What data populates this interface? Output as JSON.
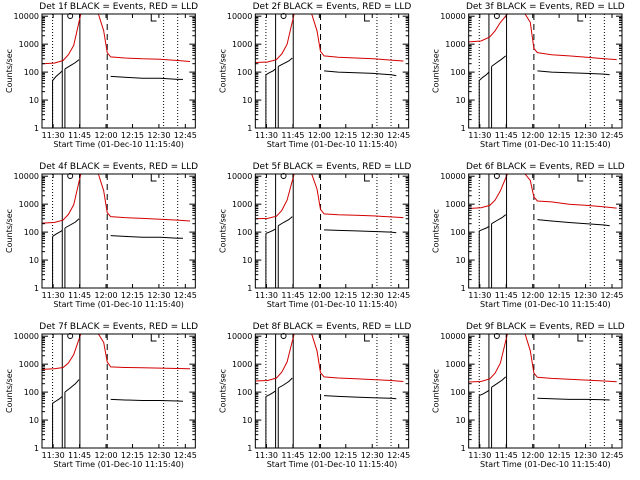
{
  "chart_data": {
    "type": "line",
    "grid": false,
    "layout": "3x3",
    "colors": {
      "events": "#000000",
      "lld": "#d40000",
      "axes": "#000000"
    },
    "x_ticks": [
      "11:30",
      "11:45",
      "12:00",
      "12:15",
      "12:30",
      "12:45"
    ],
    "y_ticks": [
      "1",
      "10",
      "100",
      "1000",
      "10000"
    ],
    "y_scale": "log",
    "ylim": [
      1,
      12000
    ],
    "xlim_minutes_after_start": [
      8,
      95
    ],
    "xlabel": "Start Time (01-Dec-10 11:15:40)",
    "ylabel": "Counts/sec",
    "vertical_markers": {
      "solid_minutes": [
        19.5,
        29.5
      ],
      "dashed_minutes": [
        45
      ],
      "dotted_minutes": [
        14,
        77,
        85
      ]
    },
    "panels": [
      {
        "title": "Det 1f BLACK = Events, RED = LLD",
        "series": [
          {
            "name": "BLACK",
            "segments": [
              {
                "x": [
                  14,
                  16,
                  18,
                  19.5
                ],
                "y": [
                  50,
                  70,
                  90,
                  110
                ]
              },
              {
                "x": [
                  21,
                  24,
                  27,
                  29
                ],
                "y": [
                  130,
                  170,
                  220,
                  280
                ]
              },
              {
                "x": [
                  47,
                  55,
                  65,
                  75,
                  85,
                  88
                ],
                "y": [
                  70,
                  65,
                  60,
                  60,
                  55,
                  55
                ]
              }
            ]
          },
          {
            "name": "RED",
            "x": [
              8,
              15,
              20,
              23,
              26,
              30,
              36,
              40,
              43,
              45,
              47,
              55,
              65,
              75,
              85,
              92
            ],
            "y": [
              200,
              210,
              260,
              420,
              900,
              12000,
              12000,
              12000,
              3000,
              500,
              350,
              320,
              300,
              290,
              260,
              240
            ]
          }
        ]
      },
      {
        "title": "Det 2f BLACK = Events, RED = LLD",
        "series": [
          {
            "name": "BLACK",
            "segments": [
              {
                "x": [
                  14,
                  16,
                  18,
                  19.5
                ],
                "y": [
                  80,
                  95,
                  110,
                  130
                ]
              },
              {
                "x": [
                  21,
                  24,
                  27,
                  29
                ],
                "y": [
                  160,
                  200,
                  250,
                  320
                ]
              },
              {
                "x": [
                  47,
                  55,
                  65,
                  75,
                  85,
                  88
                ],
                "y": [
                  110,
                  100,
                  95,
                  90,
                  80,
                  75
                ]
              }
            ]
          },
          {
            "name": "RED",
            "x": [
              8,
              15,
              20,
              23,
              26,
              30,
              36,
              40,
              43,
              45,
              47,
              55,
              65,
              75,
              85,
              92
            ],
            "y": [
              220,
              230,
              280,
              450,
              1000,
              12000,
              12000,
              12000,
              3000,
              550,
              380,
              340,
              320,
              300,
              270,
              250
            ]
          }
        ]
      },
      {
        "title": "Det 3f BLACK = Events, RED = LLD",
        "series": [
          {
            "name": "BLACK",
            "segments": [
              {
                "x": [
                  14,
                  16,
                  18,
                  19.5
                ],
                "y": [
                  50,
                  65,
                  80,
                  100
                ]
              },
              {
                "x": [
                  21,
                  24,
                  27,
                  29
                ],
                "y": [
                  160,
                  220,
                  300,
                  380
                ]
              },
              {
                "x": [
                  47,
                  55,
                  65,
                  75,
                  85,
                  88
                ],
                "y": [
                  110,
                  100,
                  95,
                  90,
                  85,
                  80
                ]
              }
            ]
          },
          {
            "name": "RED",
            "x": [
              8,
              15,
              20,
              23,
              26,
              30,
              36,
              40,
              43,
              45,
              47,
              55,
              65,
              75,
              85,
              92
            ],
            "y": [
              1200,
              1300,
              1800,
              3000,
              6000,
              12000,
              12000,
              12000,
              6000,
              700,
              500,
              420,
              380,
              340,
              300,
              280
            ]
          }
        ]
      },
      {
        "title": "Det 4f BLACK = Events, RED = LLD",
        "series": [
          {
            "name": "BLACK",
            "segments": [
              {
                "x": [
                  14,
                  16,
                  18,
                  19.5
                ],
                "y": [
                  70,
                  85,
                  100,
                  115
                ]
              },
              {
                "x": [
                  21,
                  24,
                  27,
                  29
                ],
                "y": [
                  140,
                  180,
                  230,
                  300
                ]
              },
              {
                "x": [
                  47,
                  55,
                  65,
                  75,
                  85,
                  88
                ],
                "y": [
                  75,
                  70,
                  65,
                  65,
                  60,
                  60
                ]
              }
            ]
          },
          {
            "name": "RED",
            "x": [
              8,
              15,
              20,
              23,
              26,
              30,
              36,
              40,
              43,
              45,
              47,
              55,
              65,
              75,
              85,
              92
            ],
            "y": [
              210,
              220,
              270,
              430,
              950,
              12000,
              12000,
              12000,
              3000,
              500,
              360,
              330,
              310,
              290,
              270,
              250
            ]
          }
        ]
      },
      {
        "title": "Det 5f BLACK = Events, RED = LLD",
        "series": [
          {
            "name": "BLACK",
            "segments": [
              {
                "x": [
                  14,
                  16,
                  18,
                  19.5
                ],
                "y": [
                  90,
                  100,
                  115,
                  130
                ]
              },
              {
                "x": [
                  21,
                  24,
                  27,
                  29
                ],
                "y": [
                  170,
                  220,
                  280,
                  360
                ]
              },
              {
                "x": [
                  47,
                  55,
                  65,
                  75,
                  85,
                  88
                ],
                "y": [
                  120,
                  115,
                  110,
                  105,
                  100,
                  95
                ]
              }
            ]
          },
          {
            "name": "RED",
            "x": [
              8,
              15,
              20,
              23,
              26,
              30,
              36,
              40,
              43,
              45,
              47,
              55,
              65,
              75,
              85,
              92
            ],
            "y": [
              300,
              310,
              370,
              600,
              1400,
              12000,
              12000,
              12000,
              3500,
              650,
              450,
              420,
              400,
              380,
              350,
              330
            ]
          }
        ]
      },
      {
        "title": "Det 6f BLACK = Events, RED = LLD",
        "series": [
          {
            "name": "BLACK",
            "segments": [
              {
                "x": [
                  14,
                  16,
                  18,
                  19.5
                ],
                "y": [
                  110,
                  125,
                  140,
                  160
                ]
              },
              {
                "x": [
                  21,
                  24,
                  27,
                  29
                ],
                "y": [
                  200,
                  260,
                  330,
                  420
                ]
              },
              {
                "x": [
                  47,
                  55,
                  65,
                  75,
                  85,
                  88
                ],
                "y": [
                  280,
                  250,
                  220,
                  200,
                  180,
                  170
                ]
              }
            ]
          },
          {
            "name": "RED",
            "x": [
              8,
              15,
              20,
              23,
              26,
              30,
              36,
              40,
              43,
              45,
              47,
              55,
              65,
              75,
              85,
              92
            ],
            "y": [
              700,
              750,
              900,
              1400,
              3000,
              12000,
              12000,
              12000,
              7000,
              1800,
              1300,
              1200,
              1000,
              900,
              800,
              720
            ]
          }
        ]
      },
      {
        "title": "Det 7f BLACK = Events, RED = LLD",
        "series": [
          {
            "name": "BLACK",
            "segments": [
              {
                "x": [
                  14,
                  16,
                  18,
                  19.5
                ],
                "y": [
                  40,
                  48,
                  58,
                  70
                ]
              },
              {
                "x": [
                  21,
                  24,
                  27,
                  29
                ],
                "y": [
                  100,
                  140,
                  200,
                  280
                ]
              },
              {
                "x": [
                  47,
                  55,
                  65,
                  75,
                  85,
                  88
                ],
                "y": [
                  55,
                  52,
                  50,
                  50,
                  48,
                  47
                ]
              }
            ]
          },
          {
            "name": "RED",
            "x": [
              8,
              15,
              20,
              23,
              26,
              30,
              36,
              40,
              43,
              45,
              47,
              55,
              65,
              75,
              85,
              92
            ],
            "y": [
              650,
              680,
              760,
              1100,
              2200,
              12000,
              12000,
              12000,
              6000,
              1200,
              800,
              760,
              740,
              720,
              700,
              690
            ]
          }
        ]
      },
      {
        "title": "Det 8f BLACK = Events, RED = LLD",
        "series": [
          {
            "name": "BLACK",
            "segments": [
              {
                "x": [
                  14,
                  16,
                  18,
                  19.5
                ],
                "y": [
                  70,
                  80,
                  95,
                  110
                ]
              },
              {
                "x": [
                  21,
                  24,
                  27,
                  29
                ],
                "y": [
                  140,
                  180,
                  240,
                  320
                ]
              },
              {
                "x": [
                  47,
                  55,
                  65,
                  75,
                  85,
                  88
                ],
                "y": [
                  75,
                  70,
                  66,
                  63,
                  60,
                  58
                ]
              }
            ]
          },
          {
            "name": "RED",
            "x": [
              8,
              15,
              20,
              23,
              26,
              30,
              36,
              40,
              43,
              45,
              47,
              55,
              65,
              75,
              85,
              92
            ],
            "y": [
              250,
              260,
              320,
              520,
              1200,
              12000,
              12000,
              12000,
              3000,
              500,
              350,
              320,
              300,
              280,
              260,
              240
            ]
          }
        ]
      },
      {
        "title": "Det 9f BLACK = Events, RED = LLD",
        "series": [
          {
            "name": "BLACK",
            "segments": [
              {
                "x": [
                  14,
                  16,
                  18,
                  19.5
                ],
                "y": [
                  75,
                  85,
                  100,
                  115
                ]
              },
              {
                "x": [
                  21,
                  24,
                  27,
                  29
                ],
                "y": [
                  150,
                  200,
                  270,
                  350
                ]
              },
              {
                "x": [
                  47,
                  55,
                  65,
                  75,
                  85,
                  88
                ],
                "y": [
                  60,
                  58,
                  55,
                  55,
                  53,
                  52
                ]
              }
            ]
          },
          {
            "name": "RED",
            "x": [
              8,
              15,
              20,
              23,
              26,
              30,
              36,
              40,
              43,
              45,
              47,
              55,
              65,
              75,
              85,
              92
            ],
            "y": [
              230,
              240,
              300,
              480,
              1100,
              12000,
              12000,
              12000,
              3000,
              480,
              340,
              310,
              290,
              270,
              250,
              235
            ]
          }
        ]
      }
    ]
  }
}
